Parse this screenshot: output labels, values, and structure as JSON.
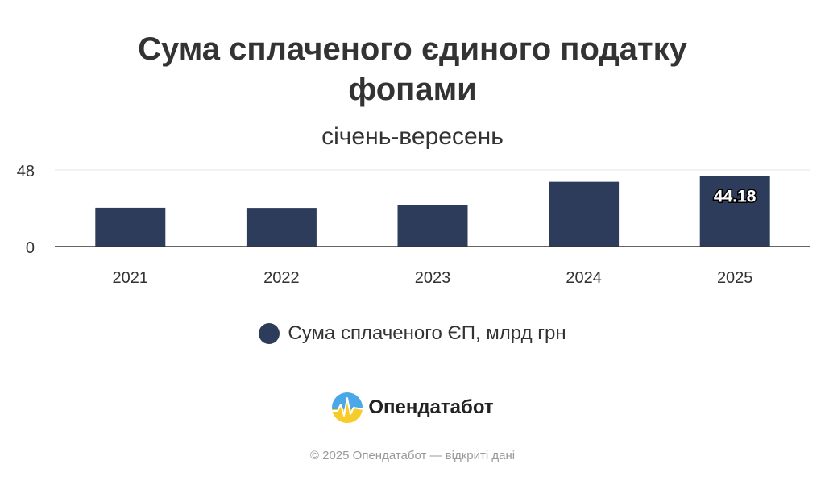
{
  "chart_data": {
    "type": "bar",
    "title_lines": [
      "Сума сплаченого єдиного податку",
      "фопами"
    ],
    "subtitle": "січень-вересень",
    "categories": [
      "2021",
      "2022",
      "2023",
      "2024",
      "2025"
    ],
    "series": [
      {
        "name": "Сума сплаченого ЄП, млрд грн",
        "values": [
          24.3,
          24.2,
          26.1,
          40.6,
          44.18
        ],
        "color": "#2e3c5c"
      }
    ],
    "data_labels": [
      {
        "index": 4,
        "text": "44.18"
      }
    ],
    "y_ticks": [
      "0",
      "48"
    ],
    "ylim": [
      0,
      48
    ],
    "grid": true,
    "legend": "bottom-center"
  },
  "brand": {
    "name": "Опендатабот",
    "logo_icon": "opendatabot-logo-icon"
  },
  "footer": "© 2025 Опендатабот — відкриті дані"
}
